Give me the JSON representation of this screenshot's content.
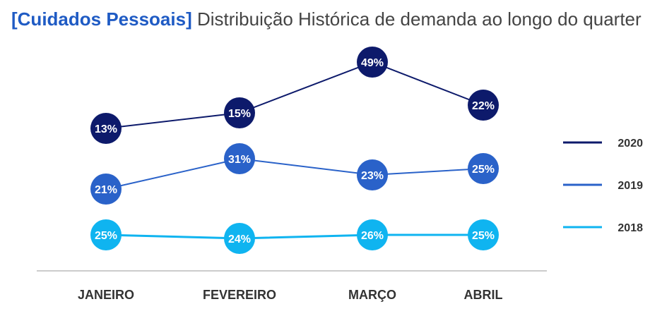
{
  "title": {
    "prefix": "[Cuidados Pessoais]",
    "text": "Distribuição Histórica de demanda ao longo do quarter"
  },
  "chart_data": {
    "type": "line",
    "title": "[Cuidados Pessoais] Distribuição Histórica de demanda ao longo do quarter",
    "categories": [
      "JANEIRO",
      "FEVEREIRO",
      "MARÇO",
      "ABRIL"
    ],
    "series": [
      {
        "name": "2020",
        "color": "#0d1a6b",
        "values": [
          13,
          15,
          49,
          22
        ],
        "labels": [
          "13%",
          "15%",
          "49%",
          "22%"
        ]
      },
      {
        "name": "2019",
        "color": "#2a62c9",
        "values": [
          21,
          31,
          23,
          25
        ],
        "labels": [
          "21%",
          "31%",
          "23%",
          "25%"
        ]
      },
      {
        "name": "2018",
        "color": "#0fb4f0",
        "values": [
          25,
          24,
          26,
          25
        ],
        "labels": [
          "25%",
          "24%",
          "26%",
          "25%"
        ]
      }
    ],
    "unit": "%",
    "legend_position": "right",
    "grid": false
  }
}
